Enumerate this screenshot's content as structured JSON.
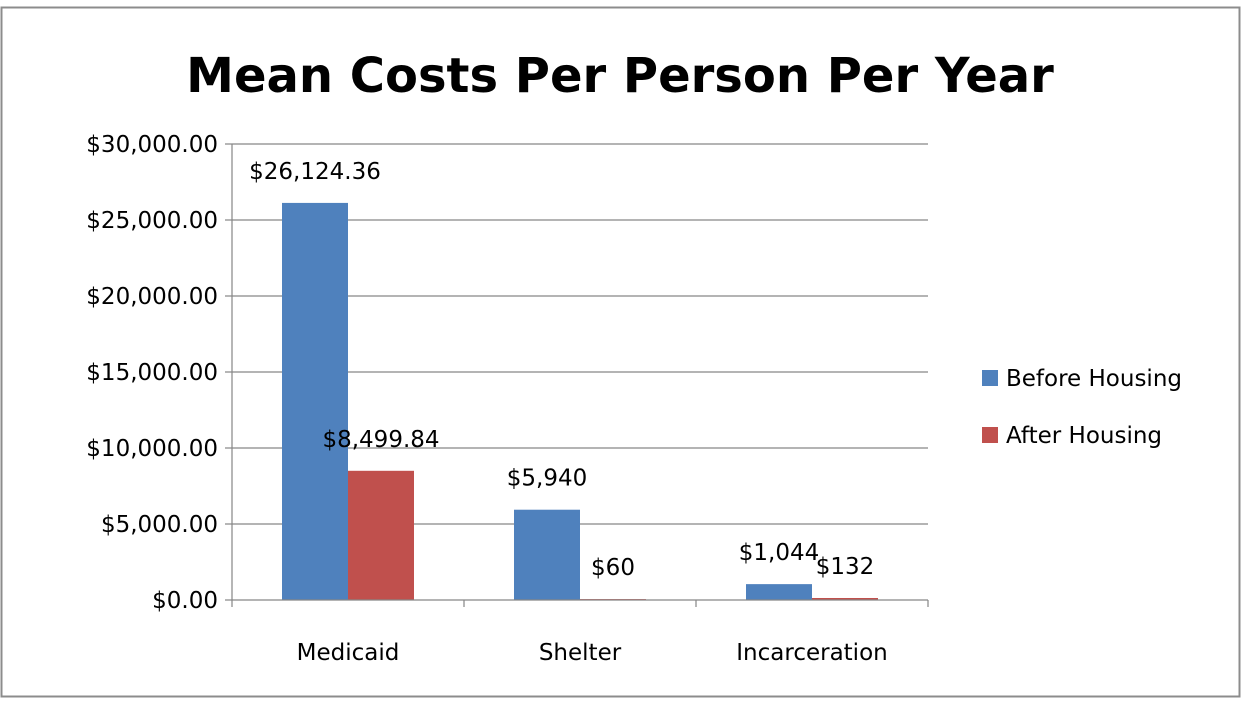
{
  "chart_data": {
    "type": "bar",
    "title": "Mean Costs Per Person Per Year",
    "xlabel": "",
    "ylabel": "",
    "categories": [
      "Medicaid",
      "Shelter",
      "Incarceration"
    ],
    "series": [
      {
        "name": "Before Housing",
        "values": [
          26124.36,
          5940,
          1044
        ],
        "labels": [
          "$26,124.36",
          "$5,940",
          "$1,044"
        ],
        "color": "#4F81BD"
      },
      {
        "name": "After Housing",
        "values": [
          8499.84,
          60,
          132
        ],
        "labels": [
          "$8,499.84",
          "$60",
          "$132"
        ],
        "color": "#C0504D"
      }
    ],
    "ylim": [
      0,
      30000
    ],
    "yticks": [
      0,
      5000,
      10000,
      15000,
      20000,
      25000,
      30000
    ],
    "ytick_labels": [
      "$0.00",
      "$5,000.00",
      "$10,000.00",
      "$15,000.00",
      "$20,000.00",
      "$25,000.00",
      "$30,000.00"
    ],
    "grid": true,
    "legend_position": "right"
  }
}
